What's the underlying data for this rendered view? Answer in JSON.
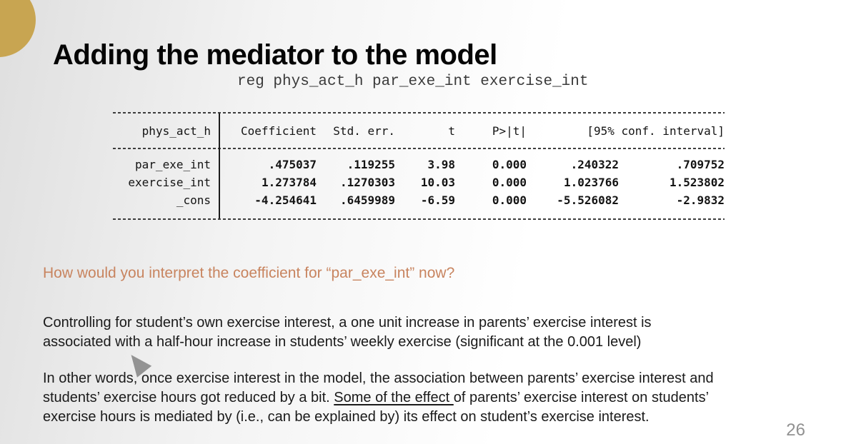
{
  "slide": {
    "title": "Adding the mediator to the model",
    "page_number": "26",
    "accent_color": "#c8a551",
    "question_color": "#c8845f"
  },
  "code": {
    "command": "reg phys_act_h par_exe_int exercise_int"
  },
  "table": {
    "dep_var": "phys_act_h",
    "headers": {
      "coef": "Coefficient",
      "std_err": "Std. err.",
      "t": "t",
      "p": "P>|t|",
      "ci": "[95% conf. interval]"
    },
    "rows": [
      {
        "label": "par_exe_int",
        "coef": ".475037",
        "std_err": ".119255",
        "t": "3.98",
        "p": "0.000",
        "ci_low": ".240322",
        "ci_high": ".709752"
      },
      {
        "label": "exercise_int",
        "coef": "1.273784",
        "std_err": ".1270303",
        "t": "10.03",
        "p": "0.000",
        "ci_low": "1.023766",
        "ci_high": "1.523802"
      },
      {
        "label": "_cons",
        "coef": "-4.254641",
        "std_err": ".6459989",
        "t": "-6.59",
        "p": "0.000",
        "ci_low": "-5.526082",
        "ci_high": "-2.9832"
      }
    ]
  },
  "body": {
    "question": "How would you interpret the coefficient for “par_exe_int” now?",
    "paragraph1": "Controlling for student’s own exercise interest, a one unit increase in parents’ exercise interest is\nassociated with a half-hour increase in students’ weekly exercise (significant at the 0.001 level)",
    "paragraph2_part1": "In other words, once exercise interest in the model, the association between parents’ exercise interest and\nstudents’ exercise hours got reduced by a bit. ",
    "paragraph2_underlined": "Some of the effect ",
    "paragraph2_part2": "of parents’ exercise interest on students’\nexercise hours is mediated by (i.e., can be explained by) its effect on student’s exercise interest."
  }
}
